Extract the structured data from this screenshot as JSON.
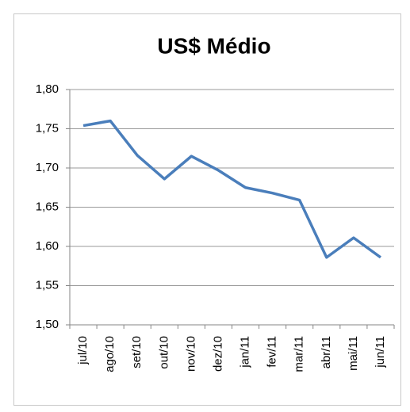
{
  "chart_data": {
    "type": "line",
    "title": "US$ Médio",
    "categories": [
      "jul/10",
      "ago/10",
      "set/10",
      "out/10",
      "nov/10",
      "dez/10",
      "jan/11",
      "fev/11",
      "mar/11",
      "abr/11",
      "mai/11",
      "jun/11"
    ],
    "values": [
      1.754,
      1.76,
      1.716,
      1.686,
      1.715,
      1.697,
      1.675,
      1.668,
      1.659,
      1.586,
      1.611,
      1.586
    ],
    "color": "#4a7ebb",
    "ylim": [
      1.5,
      1.8
    ],
    "yticks": [
      {
        "value": 1.5,
        "label": "1,50"
      },
      {
        "value": 1.55,
        "label": "1,55"
      },
      {
        "value": 1.6,
        "label": "1,60"
      },
      {
        "value": 1.65,
        "label": "1,65"
      },
      {
        "value": 1.7,
        "label": "1,70"
      },
      {
        "value": 1.75,
        "label": "1,75"
      },
      {
        "value": 1.8,
        "label": "1,80"
      }
    ],
    "grid": true
  }
}
